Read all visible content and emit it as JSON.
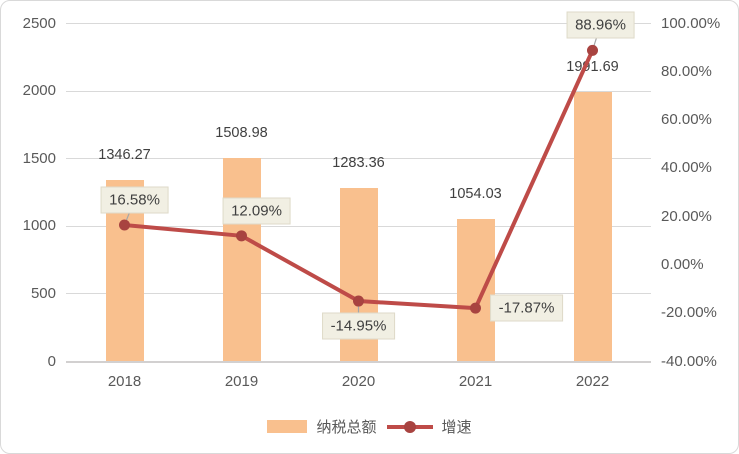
{
  "chart_data": {
    "type": "bar",
    "subtype": "combo-bar-line",
    "categories": [
      "2018",
      "2019",
      "2020",
      "2021",
      "2022"
    ],
    "series": [
      {
        "name": "纳税总额",
        "type": "bar",
        "axis": "left",
        "values": [
          1346.27,
          1508.98,
          1283.36,
          1054.03,
          1991.69
        ],
        "labels": [
          "1346.27",
          "1508.98",
          "1283.36",
          "1054.03",
          "1991.69"
        ],
        "color": "#F9C08E"
      },
      {
        "name": "增速",
        "type": "line",
        "axis": "right",
        "values": [
          16.58,
          12.09,
          -14.95,
          -17.87,
          88.96
        ],
        "labels": [
          "16.58%",
          "12.09%",
          "-14.95%",
          "-17.87%",
          "88.96%"
        ],
        "color": "#BE4B48",
        "marker_color": "#A84340"
      }
    ],
    "left_axis": {
      "min": 0,
      "max": 2500,
      "step": 500,
      "ticks": [
        "0",
        "500",
        "1000",
        "1500",
        "2000",
        "2500"
      ]
    },
    "right_axis": {
      "min": -40,
      "max": 100,
      "step": 20,
      "ticks": [
        "-40.00%",
        "-20.00%",
        "0.00%",
        "20.00%",
        "40.00%",
        "60.00%",
        "80.00%",
        "100.00%"
      ]
    },
    "legend": {
      "position": "bottom",
      "items": [
        "纳税总额",
        "增速"
      ]
    },
    "grid": "horizontal-on",
    "colors": {
      "bar": "#F9C08E",
      "line": "#BE4B48",
      "marker": "#A84340",
      "grid": "#D9D9D9",
      "axis_text": "#595959",
      "value_text": "#404040",
      "callout_bg": "#F1EFE3",
      "callout_border": "#DEDAC9",
      "leader": "#A6A6A6"
    }
  }
}
